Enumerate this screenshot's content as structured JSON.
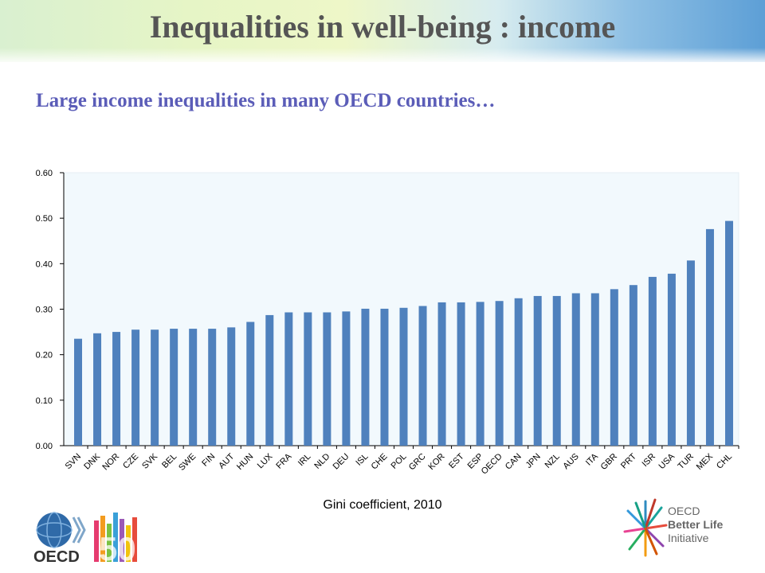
{
  "header": {
    "title": "Inequalities in well-being : income",
    "subtitle": "Large income inequalities in many OECD countries…"
  },
  "caption": "Gini coefficient, 2010",
  "logos": {
    "oecd_text": "OECD",
    "oecd_50": "50",
    "bli_line1": "OECD",
    "bli_line2": "Better Life",
    "bli_line3": "Initiative"
  },
  "colors": {
    "bar": "#4f81bd",
    "title": "#555555",
    "subtitle": "#5b5db8"
  },
  "chart_data": {
    "type": "bar",
    "title": "",
    "xlabel": "",
    "ylabel": "",
    "ylim": [
      0,
      0.6
    ],
    "yticks": [
      "0.00",
      "0.10",
      "0.20",
      "0.30",
      "0.40",
      "0.50",
      "0.60"
    ],
    "grid": false,
    "categories": [
      "SVN",
      "DNK",
      "NOR",
      "CZE",
      "SVK",
      "BEL",
      "SWE",
      "FIN",
      "AUT",
      "HUN",
      "LUX",
      "FRA",
      "IRL",
      "NLD",
      "DEU",
      "ISL",
      "CHE",
      "POL",
      "GRC",
      "KOR",
      "EST",
      "ESP",
      "OECD",
      "CAN",
      "JPN",
      "NZL",
      "AUS",
      "ITA",
      "GBR",
      "PRT",
      "ISR",
      "USA",
      "TUR",
      "MEX",
      "CHL"
    ],
    "values": [
      0.235,
      0.247,
      0.25,
      0.255,
      0.255,
      0.257,
      0.257,
      0.257,
      0.26,
      0.272,
      0.287,
      0.293,
      0.293,
      0.293,
      0.295,
      0.301,
      0.301,
      0.303,
      0.307,
      0.315,
      0.315,
      0.316,
      0.318,
      0.324,
      0.329,
      0.329,
      0.335,
      0.335,
      0.344,
      0.353,
      0.371,
      0.378,
      0.407,
      0.476,
      0.494
    ]
  }
}
